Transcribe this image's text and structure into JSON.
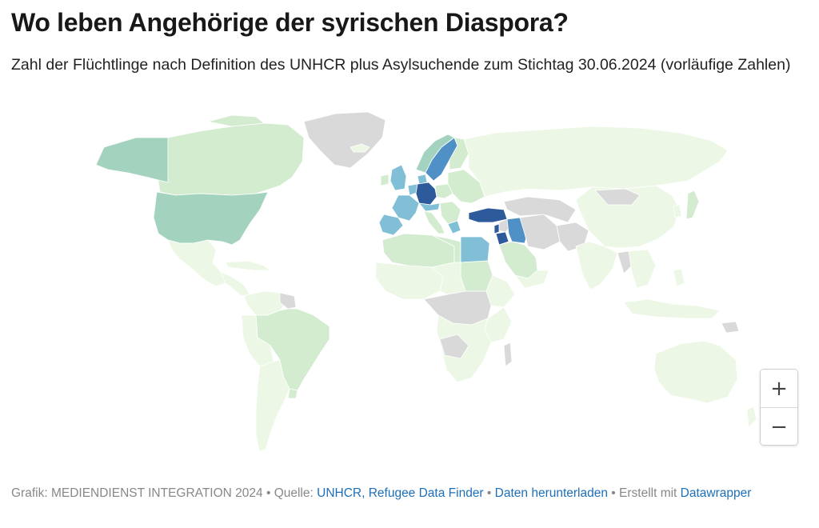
{
  "header": {
    "title": "Wo leben Angehörige der syrischen Diaspora?",
    "subtitle": "Zahl der Flüchtlinge nach Definition des UNHCR plus Asylsuchende zum Stichtag 30.06.2024 (vorläufige Zahlen)"
  },
  "zoom": {
    "in_label": "+",
    "out_label": "−"
  },
  "footer": {
    "prefix": "Grafik: MEDIENDIENST INTEGRATION 2024 • Quelle: ",
    "source_link": "UNHCR, Refugee Data Finder",
    "sep1": " • ",
    "download_link": "Daten herunterladen",
    "sep2": " • Erstellt mit ",
    "credit_link": "Datawrapper"
  },
  "colors": {
    "no_data": "#d9d9d9",
    "lowest": "#edf7e6",
    "low": "#d3ecd0",
    "mid": "#a3d3bf",
    "upper_mid": "#80bfd6",
    "high": "#4f91c6",
    "highest": "#2c5a9a",
    "border": "#ffffff",
    "link": "#1d6fb8"
  }
}
